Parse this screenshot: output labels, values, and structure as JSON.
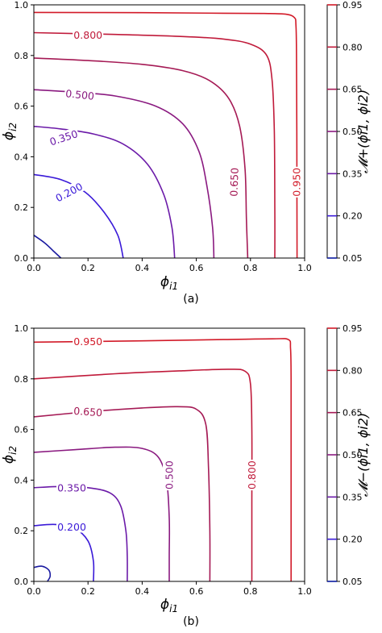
{
  "chart_data": [
    {
      "type": "contour",
      "caption": "(a)",
      "xlabel": "ϕi1",
      "ylabel": "ϕi2",
      "xlim": [
        0.0,
        1.0
      ],
      "ylim": [
        0.0,
        1.0
      ],
      "xticks": [
        "0.0",
        "0.2",
        "0.4",
        "0.6",
        "0.8",
        "1.0"
      ],
      "yticks": [
        "0.0",
        "0.2",
        "0.4",
        "0.6",
        "0.8",
        "1.0"
      ],
      "levels": [
        0.05,
        0.2,
        0.35,
        0.5,
        0.65,
        0.8,
        0.95
      ],
      "level_labels": [
        "0.200",
        "0.350",
        "0.500",
        "0.650",
        "0.800",
        "0.950"
      ],
      "colorbar": {
        "label": "𝓜+(ϕi1, ϕi2)",
        "ticks": [
          "0.95",
          "0.80",
          "0.65",
          "0.50",
          "0.35",
          "0.20",
          "0.05"
        ],
        "colors": [
          "#d21a28",
          "#c01a3a",
          "#a51a55",
          "#8a1a80",
          "#6b1aa8",
          "#3a1ad8",
          "#0a1aa0"
        ]
      },
      "curves": [
        {
          "level": 0.05,
          "color": "#1a1aa0",
          "points": [
            [
              0.0,
              0.09
            ],
            [
              0.04,
              0.06
            ],
            [
              0.07,
              0.03
            ],
            [
              0.1,
              0.0
            ]
          ]
        },
        {
          "level": 0.2,
          "color": "#3a1ad8",
          "points": [
            [
              0.0,
              0.33
            ],
            [
              0.1,
              0.31
            ],
            [
              0.19,
              0.26
            ],
            [
              0.26,
              0.18
            ],
            [
              0.31,
              0.09
            ],
            [
              0.33,
              0.0
            ]
          ]
        },
        {
          "level": 0.35,
          "color": "#6b1aa8",
          "points": [
            [
              0.0,
              0.52
            ],
            [
              0.1,
              0.51
            ],
            [
              0.22,
              0.49
            ],
            [
              0.33,
              0.45
            ],
            [
              0.42,
              0.37
            ],
            [
              0.48,
              0.25
            ],
            [
              0.51,
              0.12
            ],
            [
              0.52,
              0.0
            ]
          ]
        },
        {
          "level": 0.5,
          "color": "#8a1a80",
          "points": [
            [
              0.0,
              0.665
            ],
            [
              0.15,
              0.655
            ],
            [
              0.3,
              0.64
            ],
            [
              0.45,
              0.6
            ],
            [
              0.55,
              0.53
            ],
            [
              0.61,
              0.42
            ],
            [
              0.64,
              0.28
            ],
            [
              0.66,
              0.12
            ],
            [
              0.665,
              0.0
            ]
          ]
        },
        {
          "level": 0.65,
          "color": "#a51a55",
          "points": [
            [
              0.0,
              0.79
            ],
            [
              0.2,
              0.78
            ],
            [
              0.4,
              0.765
            ],
            [
              0.55,
              0.74
            ],
            [
              0.65,
              0.7
            ],
            [
              0.72,
              0.63
            ],
            [
              0.76,
              0.52
            ],
            [
              0.78,
              0.35
            ],
            [
              0.785,
              0.15
            ],
            [
              0.79,
              0.0
            ]
          ]
        },
        {
          "level": 0.8,
          "color": "#c01a3a",
          "points": [
            [
              0.0,
              0.89
            ],
            [
              0.3,
              0.883
            ],
            [
              0.55,
              0.875
            ],
            [
              0.7,
              0.865
            ],
            [
              0.8,
              0.845
            ],
            [
              0.86,
              0.8
            ],
            [
              0.88,
              0.7
            ],
            [
              0.888,
              0.5
            ],
            [
              0.89,
              0.2
            ],
            [
              0.89,
              0.0
            ]
          ]
        },
        {
          "level": 0.95,
          "color": "#d21a28",
          "points": [
            [
              0.0,
              0.97
            ],
            [
              0.4,
              0.969
            ],
            [
              0.7,
              0.967
            ],
            [
              0.85,
              0.966
            ],
            [
              0.93,
              0.963
            ],
            [
              0.962,
              0.95
            ],
            [
              0.968,
              0.92
            ],
            [
              0.97,
              0.8
            ],
            [
              0.971,
              0.5
            ],
            [
              0.972,
              0.0
            ]
          ]
        }
      ],
      "labels": [
        {
          "text": "0.200",
          "x": 0.13,
          "y": 0.26,
          "angle": 28,
          "color": "#3a1ad8"
        },
        {
          "text": "0.350",
          "x": 0.11,
          "y": 0.475,
          "angle": 18,
          "color": "#6b1aa8"
        },
        {
          "text": "0.500",
          "x": 0.17,
          "y": 0.645,
          "angle": -6,
          "color": "#8a1a80"
        },
        {
          "text": "0.650",
          "x": 0.74,
          "y": 0.3,
          "angle": 88,
          "color": "#a51a55"
        },
        {
          "text": "0.800",
          "x": 0.2,
          "y": 0.88,
          "angle": 0,
          "color": "#c01a3a"
        },
        {
          "text": "0.950",
          "x": 0.97,
          "y": 0.3,
          "angle": 90,
          "color": "#d21a28"
        }
      ]
    },
    {
      "type": "contour",
      "caption": "(b)",
      "xlabel": "ϕi1",
      "ylabel": "ϕi2",
      "xlim": [
        0.0,
        1.0
      ],
      "ylim": [
        0.0,
        1.0
      ],
      "xticks": [
        "0.0",
        "0.2",
        "0.4",
        "0.6",
        "0.8",
        "1.0"
      ],
      "yticks": [
        "0.0",
        "0.2",
        "0.4",
        "0.6",
        "0.8",
        "1.0"
      ],
      "levels": [
        0.05,
        0.2,
        0.35,
        0.5,
        0.65,
        0.8,
        0.95
      ],
      "level_labels": [
        "0.200",
        "0.350",
        "0.500",
        "0.650",
        "0.800",
        "0.950"
      ],
      "colorbar": {
        "label": "𝓜−(ϕi1, ϕi2)",
        "ticks": [
          "0.95",
          "0.80",
          "0.65",
          "0.50",
          "0.35",
          "0.20",
          "0.05"
        ],
        "colors": [
          "#d21a28",
          "#c01a3a",
          "#a51a55",
          "#8a1a80",
          "#6b1aa8",
          "#3a1ad8",
          "#0a1aa0"
        ]
      },
      "curves": [
        {
          "level": 0.05,
          "color": "#1a1aa0",
          "closed": true,
          "points": [
            [
              0.0,
              0.055
            ],
            [
              0.03,
              0.06
            ],
            [
              0.055,
              0.045
            ],
            [
              0.06,
              0.02
            ],
            [
              0.05,
              0.0
            ]
          ]
        },
        {
          "level": 0.2,
          "color": "#3a1ad8",
          "points": [
            [
              0.0,
              0.22
            ],
            [
              0.08,
              0.225
            ],
            [
              0.15,
              0.21
            ],
            [
              0.2,
              0.16
            ],
            [
              0.22,
              0.08
            ],
            [
              0.22,
              0.0
            ]
          ]
        },
        {
          "level": 0.35,
          "color": "#6b1aa8",
          "points": [
            [
              0.0,
              0.37
            ],
            [
              0.1,
              0.375
            ],
            [
              0.2,
              0.37
            ],
            [
              0.28,
              0.35
            ],
            [
              0.32,
              0.3
            ],
            [
              0.34,
              0.2
            ],
            [
              0.345,
              0.1
            ],
            [
              0.345,
              0.0
            ]
          ]
        },
        {
          "level": 0.5,
          "color": "#8a1a80",
          "points": [
            [
              0.0,
              0.51
            ],
            [
              0.15,
              0.52
            ],
            [
              0.3,
              0.53
            ],
            [
              0.4,
              0.525
            ],
            [
              0.46,
              0.49
            ],
            [
              0.49,
              0.4
            ],
            [
              0.5,
              0.25
            ],
            [
              0.5,
              0.1
            ],
            [
              0.5,
              0.0
            ]
          ]
        },
        {
          "level": 0.65,
          "color": "#a51a55",
          "points": [
            [
              0.0,
              0.65
            ],
            [
              0.2,
              0.67
            ],
            [
              0.4,
              0.685
            ],
            [
              0.53,
              0.69
            ],
            [
              0.6,
              0.68
            ],
            [
              0.635,
              0.62
            ],
            [
              0.645,
              0.45
            ],
            [
              0.65,
              0.2
            ],
            [
              0.65,
              0.0
            ]
          ]
        },
        {
          "level": 0.8,
          "color": "#c01a3a",
          "points": [
            [
              0.0,
              0.8
            ],
            [
              0.3,
              0.82
            ],
            [
              0.55,
              0.832
            ],
            [
              0.72,
              0.838
            ],
            [
              0.78,
              0.83
            ],
            [
              0.8,
              0.78
            ],
            [
              0.805,
              0.6
            ],
            [
              0.805,
              0.3
            ],
            [
              0.805,
              0.0
            ]
          ]
        },
        {
          "level": 0.95,
          "color": "#d21a28",
          "points": [
            [
              0.0,
              0.945
            ],
            [
              0.4,
              0.95
            ],
            [
              0.7,
              0.955
            ],
            [
              0.88,
              0.958
            ],
            [
              0.94,
              0.955
            ],
            [
              0.948,
              0.92
            ],
            [
              0.95,
              0.8
            ],
            [
              0.95,
              0.5
            ],
            [
              0.95,
              0.0
            ]
          ]
        }
      ],
      "labels": [
        {
          "text": "0.200",
          "x": 0.14,
          "y": 0.215,
          "angle": 0,
          "color": "#3a1ad8"
        },
        {
          "text": "0.350",
          "x": 0.14,
          "y": 0.37,
          "angle": 0,
          "color": "#6b1aa8"
        },
        {
          "text": "0.500",
          "x": 0.5,
          "y": 0.42,
          "angle": 90,
          "color": "#8a1a80"
        },
        {
          "text": "0.650",
          "x": 0.2,
          "y": 0.67,
          "angle": -4,
          "color": "#a51a55"
        },
        {
          "text": "0.800",
          "x": 0.805,
          "y": 0.42,
          "angle": 90,
          "color": "#c01a3a"
        },
        {
          "text": "0.950",
          "x": 0.2,
          "y": 0.948,
          "angle": 0,
          "color": "#d21a28"
        }
      ]
    }
  ]
}
